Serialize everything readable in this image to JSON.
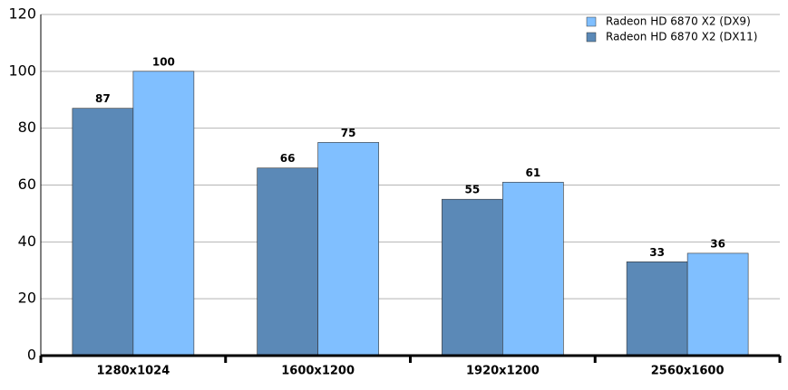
{
  "chart_data": {
    "type": "bar",
    "categories": [
      "1280x1024",
      "1600x1200",
      "1920x1200",
      "2560x1600"
    ],
    "series": [
      {
        "name": "Radeon HD 6870 X2 (DX11)",
        "color": "#5b89b7",
        "values": [
          87,
          66,
          55,
          33
        ]
      },
      {
        "name": "Radeon HD 6870 X2 (DX9)",
        "color": "#80bfff",
        "values": [
          100,
          75,
          61,
          36
        ]
      }
    ],
    "ylim": [
      0,
      120
    ],
    "yticks": [
      0,
      20,
      40,
      60,
      80,
      100,
      120
    ],
    "grid": true,
    "legend": "top-right"
  }
}
